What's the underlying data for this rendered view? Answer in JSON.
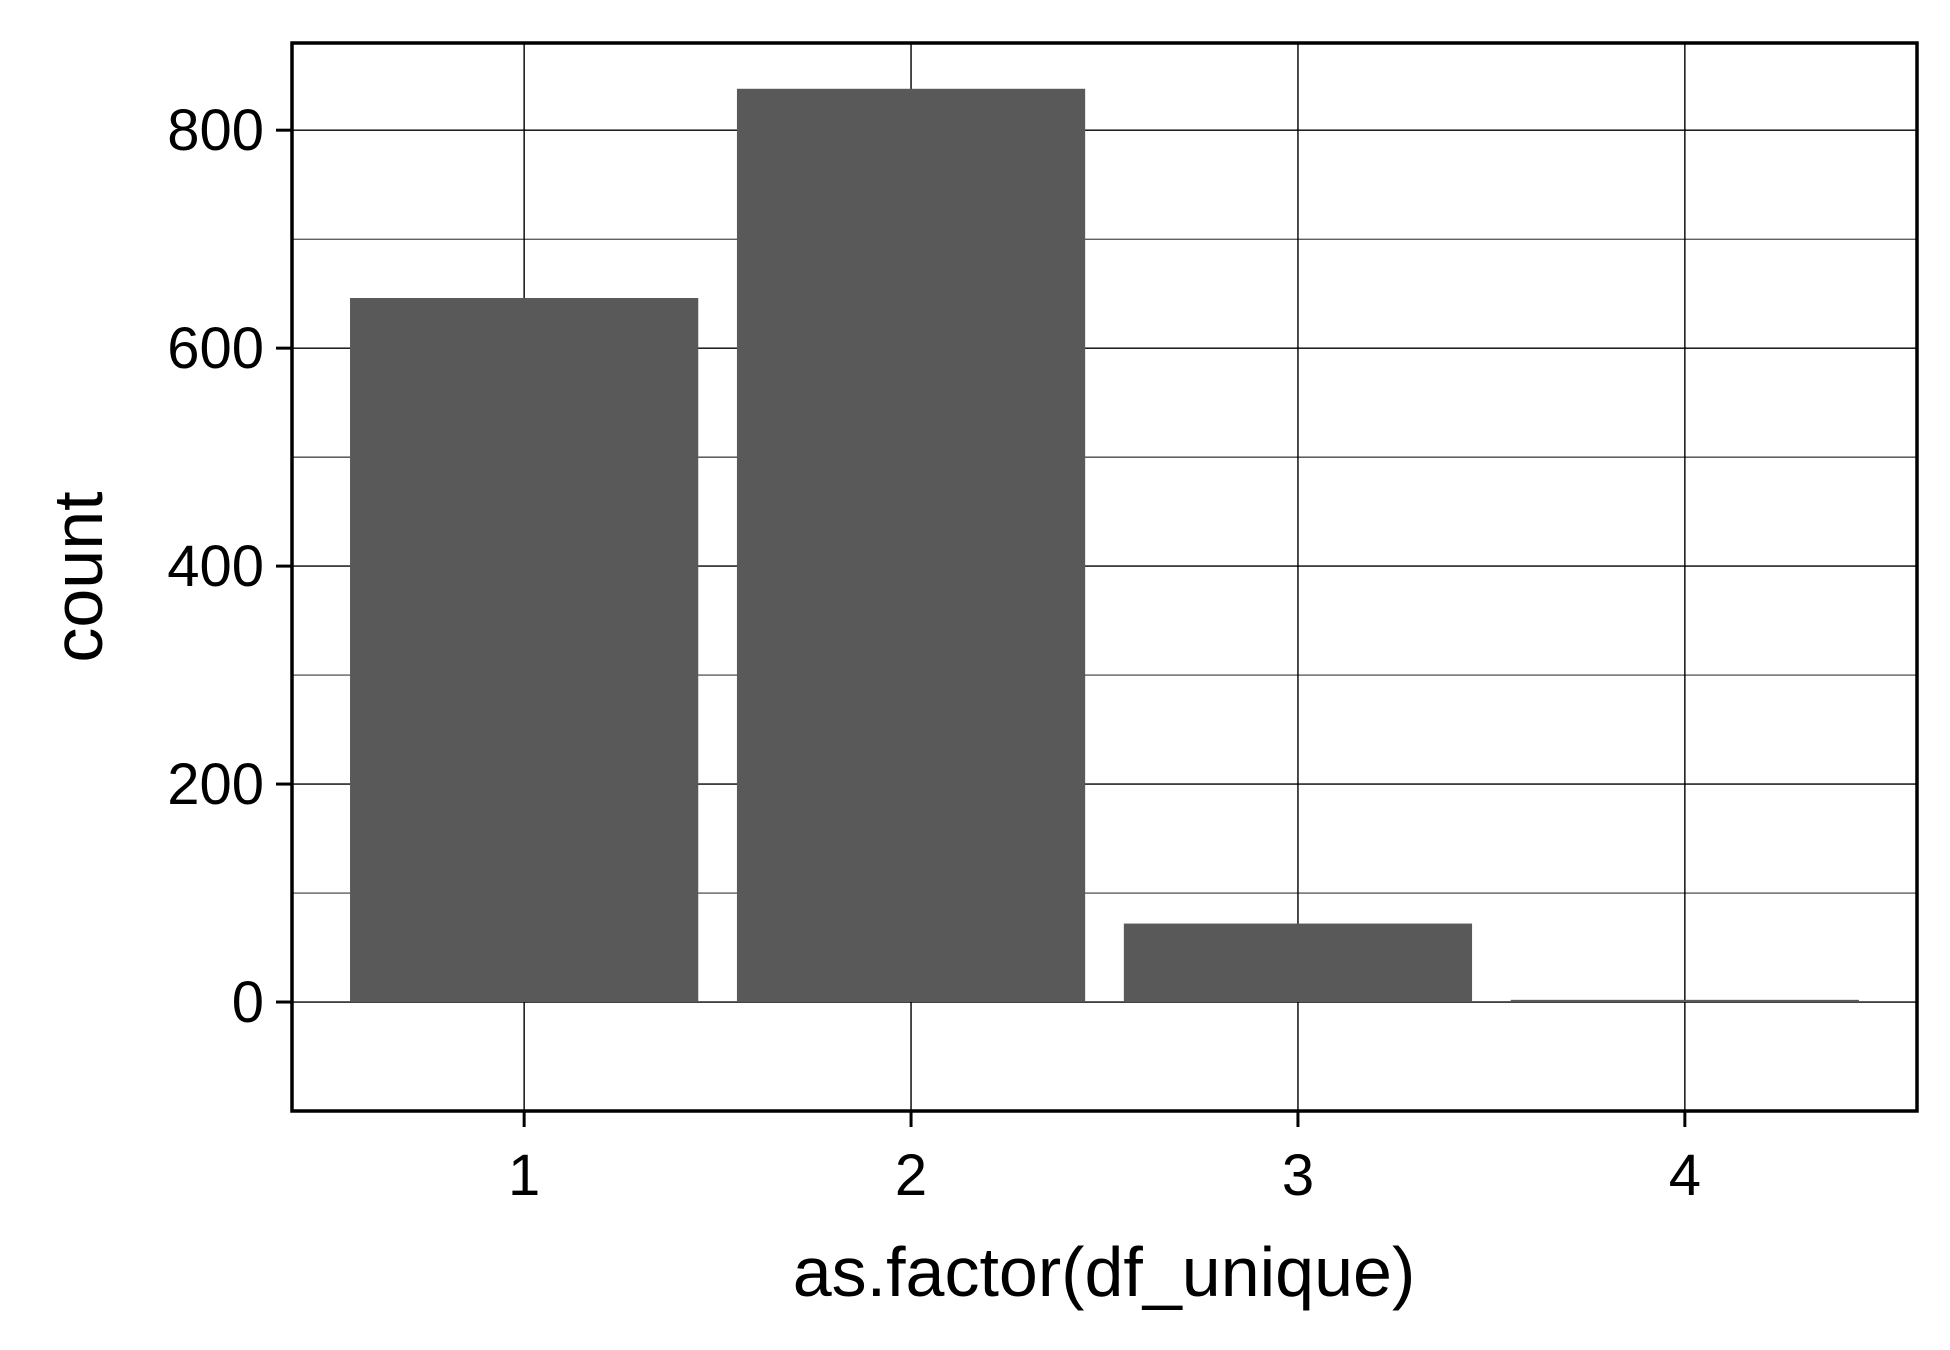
{
  "chart_data": {
    "type": "bar",
    "categories": [
      "1",
      "2",
      "3",
      "4"
    ],
    "values": [
      646,
      838,
      72,
      2
    ],
    "xlabel": "as.factor(df_unique)",
    "ylabel": "count",
    "ylim": [
      -100,
      880
    ],
    "yticks": [
      0,
      200,
      400,
      600,
      800
    ],
    "y_minor_gridlines": [
      100,
      300,
      500,
      700
    ],
    "grid": true,
    "bar_color": "#595959",
    "grid_color": "#000000",
    "background": "#ffffff"
  }
}
